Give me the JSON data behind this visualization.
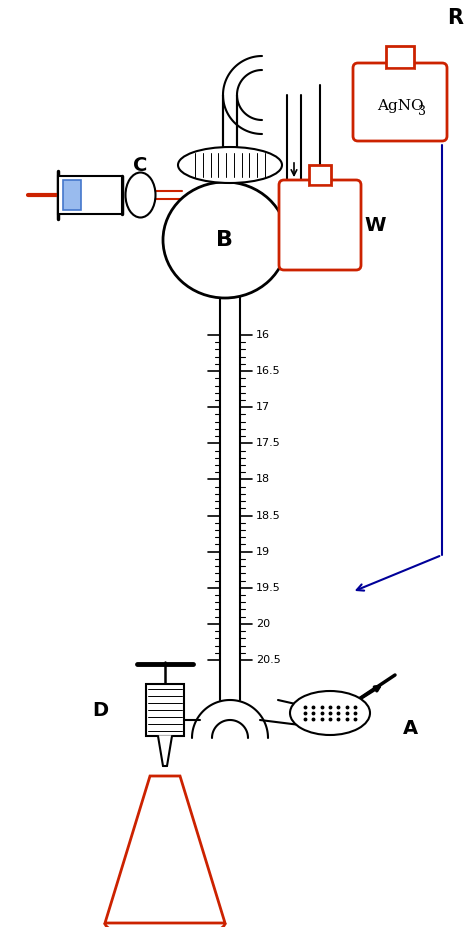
{
  "bg_color": "#ffffff",
  "line_color": "#000000",
  "red_color": "#cc2200",
  "blue_color": "#000099",
  "scale_values": [
    16.0,
    16.5,
    17.0,
    17.5,
    18.0,
    18.5,
    19.0,
    19.5,
    20.0,
    20.5
  ],
  "label_R": "R",
  "label_B": "B",
  "label_C": "C",
  "label_W": "W",
  "label_D": "D",
  "label_A": "A",
  "reagent_text": "AgNO",
  "reagent_sub": "3"
}
